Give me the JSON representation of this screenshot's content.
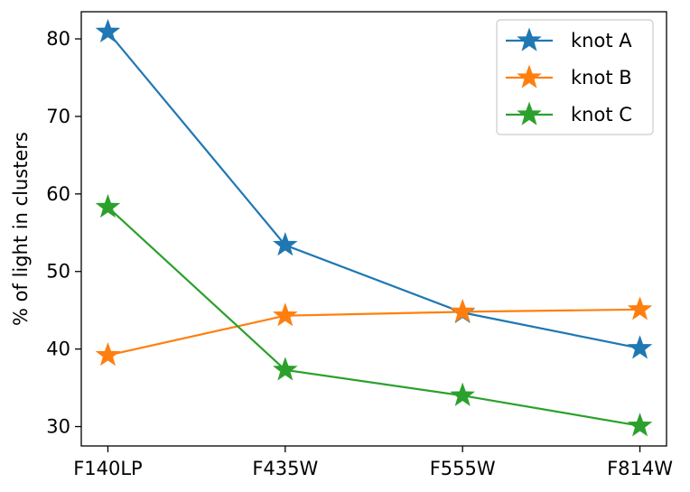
{
  "chart_data": {
    "type": "line",
    "title": "",
    "xlabel": "",
    "ylabel": "% of light in clusters",
    "categories": [
      "F140LP",
      "F435W",
      "F555W",
      "F814W"
    ],
    "ylim": [
      27.5,
      83.5
    ],
    "yticks": [
      30,
      40,
      50,
      60,
      70,
      80
    ],
    "grid": false,
    "legend_position": "top-right",
    "marker": "star",
    "series": [
      {
        "name": "knot A",
        "color": "#1f77b4",
        "values": [
          80.9,
          53.4,
          44.7,
          40.1
        ]
      },
      {
        "name": "knot B",
        "color": "#ff7f0e",
        "values": [
          39.2,
          44.3,
          44.8,
          45.1
        ]
      },
      {
        "name": "knot C",
        "color": "#2ca02c",
        "values": [
          58.3,
          37.3,
          34.0,
          30.1
        ]
      }
    ]
  }
}
